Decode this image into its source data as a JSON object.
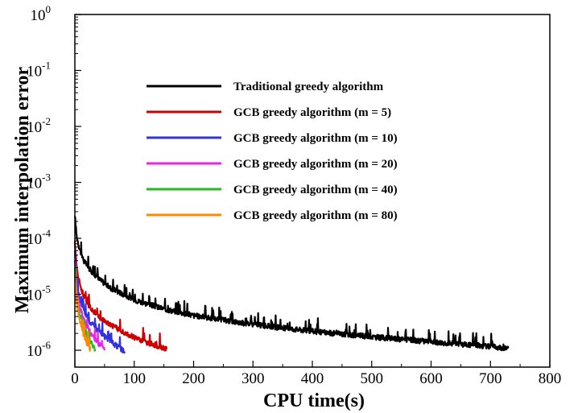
{
  "chart_data": {
    "type": "line",
    "title": "",
    "xlabel": "CPU time(s)",
    "ylabel": "Maximum interpolation error",
    "xlim": [
      0,
      800
    ],
    "ylim": [
      5e-07,
      1
    ],
    "y_scale": "log",
    "x_ticks": [
      "0",
      "100",
      "200",
      "300",
      "400",
      "500",
      "600",
      "700",
      "800"
    ],
    "y_ticks": [
      {
        "base": "10",
        "exp": "0"
      },
      {
        "base": "10",
        "exp": "-1"
      },
      {
        "base": "10",
        "exp": "-2"
      },
      {
        "base": "10",
        "exp": "-3"
      },
      {
        "base": "10",
        "exp": "-4"
      },
      {
        "base": "10",
        "exp": "-5"
      },
      {
        "base": "10",
        "exp": "-6"
      }
    ],
    "grid": false,
    "legend_position": "top-right",
    "series": [
      {
        "name": "Traditional greedy algorithm",
        "color": "#000000",
        "x": [
          0,
          3,
          8,
          15,
          25,
          40,
          60,
          100,
          150,
          200,
          300,
          400,
          500,
          600,
          700,
          730
        ],
        "y": [
          0.00025,
          0.00011,
          6.5e-05,
          4e-05,
          2.8e-05,
          1.9e-05,
          1.3e-05,
          8e-06,
          5.5e-06,
          4.2e-06,
          2.9e-06,
          2.2e-06,
          1.75e-06,
          1.42e-06,
          1.18e-06,
          1.08e-06
        ]
      },
      {
        "name": "GCB greedy algorithm (m = 5)",
        "color": "#cc0000",
        "x": [
          0,
          3,
          8,
          15,
          25,
          40,
          60,
          80,
          100,
          120,
          140,
          155
        ],
        "y": [
          9e-05,
          3e-05,
          1.6e-05,
          9e-06,
          6e-06,
          4e-06,
          2.9e-06,
          2.2e-06,
          1.7e-06,
          1.4e-06,
          1.2e-06,
          1.05e-06
        ]
      },
      {
        "name": "GCB greedy algorithm (m = 10)",
        "color": "#3333dd",
        "x": [
          0,
          3,
          8,
          15,
          25,
          40,
          55,
          70,
          84
        ],
        "y": [
          6e-05,
          1.8e-05,
          8e-06,
          5e-06,
          3.3e-06,
          2.2e-06,
          1.6e-06,
          1.2e-06,
          9.5e-07
        ]
      },
      {
        "name": "GCB greedy algorithm (m = 20)",
        "color": "#ee22ee",
        "x": [
          0,
          3,
          8,
          15,
          25,
          38,
          50
        ],
        "y": [
          4e-05,
          1.2e-05,
          6e-06,
          3.5e-06,
          2.2e-06,
          1.4e-06,
          1e-06
        ]
      },
      {
        "name": "GCB greedy algorithm (m = 40)",
        "color": "#22bb22",
        "x": [
          0,
          3,
          8,
          15,
          25,
          34
        ],
        "y": [
          3e-05,
          9e-06,
          4.5e-06,
          2.6e-06,
          1.5e-06,
          1.05e-06
        ]
      },
      {
        "name": "GCB greedy algorithm (m = 80)",
        "color": "#ff8800",
        "x": [
          0,
          3,
          8,
          14,
          20,
          26
        ],
        "y": [
          2.5e-05,
          7e-06,
          3.5e-06,
          2e-06,
          1.4e-06,
          1.05e-06
        ]
      }
    ]
  }
}
